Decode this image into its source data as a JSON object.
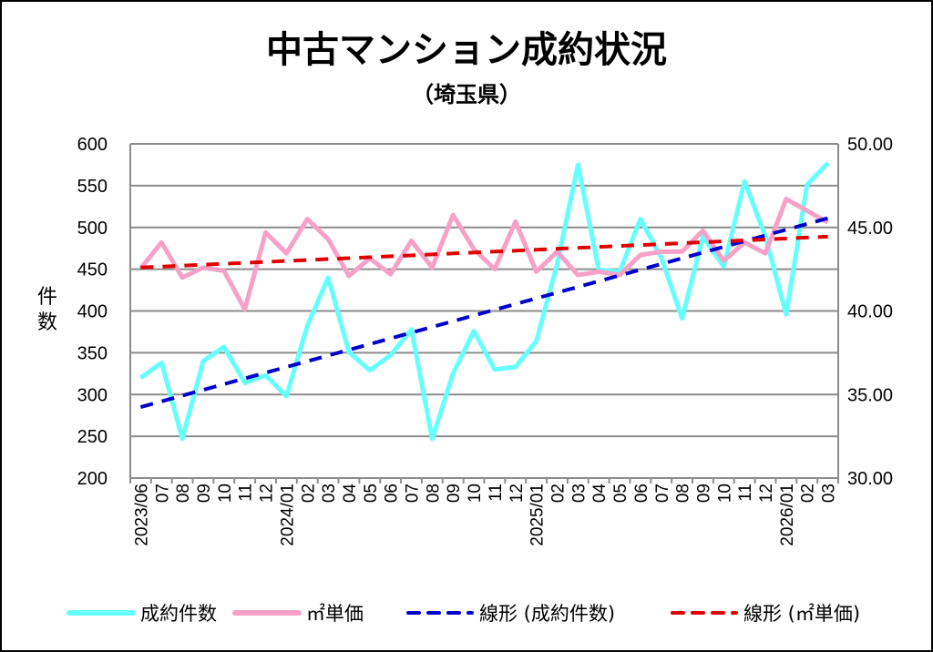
{
  "chart_data": {
    "type": "line",
    "title": "中古マンション成約状況",
    "subtitle": "（埼玉県）",
    "ylabel": "件数",
    "ylim": [
      200,
      600
    ],
    "y2lim": [
      30,
      50
    ],
    "yticks": [
      "600",
      "550",
      "500",
      "450",
      "400",
      "350",
      "300",
      "250",
      "200"
    ],
    "y2ticks": [
      "50.00",
      "45.00",
      "40.00",
      "35.00",
      "30.00"
    ],
    "grid": true,
    "legend_position": "bottom",
    "categories": [
      "2023/06",
      "07",
      "08",
      "09",
      "10",
      "11",
      "12",
      "2024/01",
      "02",
      "03",
      "04",
      "05",
      "06",
      "07",
      "08",
      "09",
      "10",
      "11",
      "12",
      "2025/01",
      "02",
      "03",
      "04",
      "05",
      "06",
      "07",
      "08",
      "09",
      "10",
      "11",
      "12",
      "2026/01",
      "02",
      "03"
    ],
    "series": [
      {
        "name": "成約件数",
        "axis": "left",
        "color": "#66FFFF",
        "values": [
          320,
          338,
          247,
          340,
          357,
          314,
          323,
          298,
          382,
          440,
          351,
          329,
          347,
          378,
          247,
          325,
          376,
          330,
          333,
          364,
          456,
          575,
          449,
          447,
          510,
          464,
          391,
          489,
          453,
          555,
          489,
          396,
          551,
          577
        ]
      },
      {
        "name": "㎡単価",
        "axis": "right",
        "color": "#F7A1C8",
        "values": [
          42.55,
          44.1,
          42.0,
          42.6,
          42.4,
          40.1,
          44.7,
          43.45,
          45.5,
          44.3,
          42.1,
          43.15,
          42.2,
          44.2,
          42.6,
          45.75,
          43.7,
          42.5,
          45.35,
          42.35,
          43.55,
          42.15,
          42.35,
          42.15,
          43.35,
          43.55,
          43.55,
          44.8,
          43.0,
          44.1,
          43.45,
          46.7,
          46.0,
          45.3
        ]
      },
      {
        "name": "線形 (成約件数)",
        "axis": "left",
        "color": "#0000CC",
        "dashed": true,
        "trend": [
          285,
          511
        ]
      },
      {
        "name": "線形 (㎡単価)",
        "axis": "right",
        "color": "#E00000",
        "dashed": true,
        "trend": [
          42.6,
          44.45
        ]
      }
    ]
  }
}
